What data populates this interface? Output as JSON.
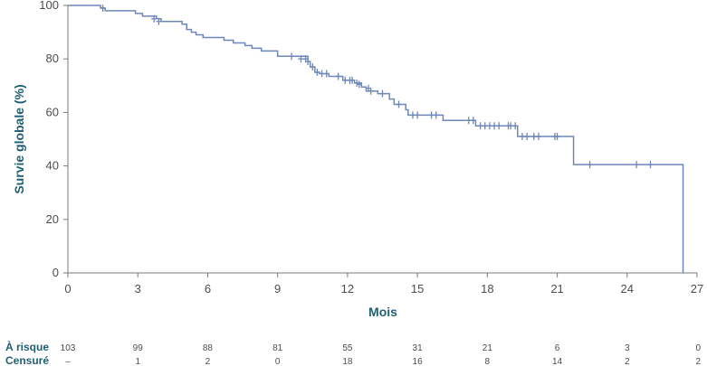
{
  "chart_data": {
    "type": "line",
    "title": "",
    "xlabel": "Mois",
    "ylabel": "Survie globale (%)",
    "xlim": [
      0,
      27
    ],
    "ylim": [
      0,
      100
    ],
    "x_ticks": [
      0,
      3,
      6,
      9,
      12,
      15,
      18,
      21,
      24,
      27
    ],
    "y_ticks": [
      0,
      20,
      40,
      60,
      80,
      100
    ],
    "grid": false,
    "color": "#6f87b8",
    "series": [
      {
        "steps": [
          [
            0,
            100
          ],
          [
            1.4,
            99
          ],
          [
            1.6,
            98
          ],
          [
            2.9,
            97
          ],
          [
            3.2,
            96
          ],
          [
            3.8,
            95
          ],
          [
            4.0,
            94
          ],
          [
            4.9,
            93
          ],
          [
            5.1,
            91
          ],
          [
            5.3,
            90
          ],
          [
            5.5,
            89
          ],
          [
            5.8,
            88
          ],
          [
            6.7,
            87
          ],
          [
            7.1,
            86
          ],
          [
            7.6,
            85
          ],
          [
            7.9,
            84
          ],
          [
            8.3,
            83
          ],
          [
            9.0,
            81
          ],
          [
            10.3,
            79
          ],
          [
            10.4,
            77
          ],
          [
            10.6,
            75
          ],
          [
            10.8,
            74.5
          ],
          [
            11.2,
            73.5
          ],
          [
            11.8,
            72
          ],
          [
            12.3,
            71
          ],
          [
            12.6,
            69.5
          ],
          [
            12.8,
            68
          ],
          [
            13.3,
            67
          ],
          [
            13.8,
            65
          ],
          [
            14.0,
            63
          ],
          [
            14.5,
            61
          ],
          [
            14.6,
            59
          ],
          [
            16.1,
            57
          ],
          [
            17.5,
            55
          ],
          [
            19.3,
            51
          ],
          [
            21.7,
            40.5
          ],
          [
            26.4,
            40.5
          ],
          [
            26.4,
            0
          ]
        ],
        "censored": [
          [
            1.5,
            99
          ],
          [
            3.7,
            95
          ],
          [
            3.9,
            94
          ],
          [
            9.6,
            81
          ],
          [
            10.0,
            80
          ],
          [
            10.2,
            80
          ],
          [
            10.3,
            79
          ],
          [
            10.5,
            77
          ],
          [
            10.7,
            75
          ],
          [
            10.9,
            74.5
          ],
          [
            11.1,
            74.5
          ],
          [
            11.6,
            73.5
          ],
          [
            11.9,
            72
          ],
          [
            12.1,
            72
          ],
          [
            12.2,
            72
          ],
          [
            12.4,
            71
          ],
          [
            12.5,
            70.5
          ],
          [
            12.9,
            69
          ],
          [
            13.0,
            68
          ],
          [
            13.5,
            67
          ],
          [
            14.2,
            63
          ],
          [
            14.8,
            59
          ],
          [
            15.0,
            59
          ],
          [
            15.6,
            59
          ],
          [
            15.8,
            59
          ],
          [
            17.2,
            57
          ],
          [
            17.4,
            57
          ],
          [
            17.7,
            55
          ],
          [
            17.9,
            55
          ],
          [
            18.1,
            55
          ],
          [
            18.3,
            55
          ],
          [
            18.5,
            55
          ],
          [
            18.9,
            55
          ],
          [
            19.0,
            55
          ],
          [
            19.2,
            55
          ],
          [
            19.5,
            51
          ],
          [
            19.7,
            51
          ],
          [
            20.0,
            51
          ],
          [
            20.2,
            51
          ],
          [
            20.9,
            51
          ],
          [
            21.0,
            51
          ],
          [
            22.4,
            40.5
          ],
          [
            24.4,
            40.5
          ],
          [
            25.0,
            40.5
          ]
        ]
      }
    ],
    "risk_table": {
      "times": [
        0,
        3,
        6,
        9,
        12,
        15,
        18,
        21,
        24,
        27
      ],
      "rows": [
        {
          "label": "À risque",
          "values": [
            "103",
            "99",
            "88",
            "81",
            "55",
            "31",
            "21",
            "6",
            "3",
            "0"
          ]
        },
        {
          "label": "Censuré",
          "values": [
            "–",
            "1",
            "2",
            "0",
            "18",
            "16",
            "8",
            "14",
            "2",
            "2"
          ]
        }
      ]
    }
  }
}
